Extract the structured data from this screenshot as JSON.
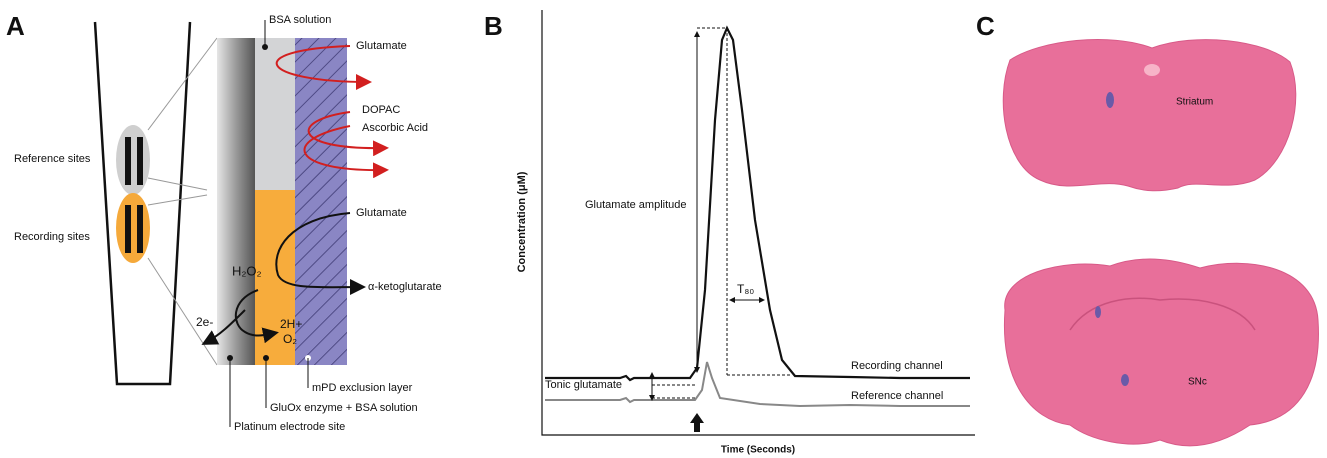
{
  "panel_a": {
    "letter": "A",
    "reference_sites": "Reference sites",
    "recording_sites": "Recording sites",
    "bsa_solution": "BSA solution",
    "glutamate_top": "Glutamate",
    "dopac": "DOPAC",
    "ascorbic_acid": "Ascorbic Acid",
    "glutamate_mid": "Glutamate",
    "h2o2": "H₂O₂",
    "alpha_ketoglutarate": "α-ketoglutarate",
    "electrons": "2e-",
    "protons": "2H+",
    "oxygen": "O₂",
    "mpd_layer": "mPD exclusion layer",
    "gluox": "GluOx enzyme + BSA solution",
    "platinum": "Platinum electrode site"
  },
  "panel_b": {
    "letter": "B",
    "y_label": "Concentration (μM)",
    "x_label": "Time (Seconds)",
    "glutamate_amplitude": "Glutamate amplitude",
    "t80": "T₈₀",
    "tonic": "Tonic glutamate",
    "recording": "Recording channel",
    "reference": "Reference channel"
  },
  "panel_c": {
    "letter": "C",
    "striatum": "Striatum",
    "snc": "SNc"
  }
}
